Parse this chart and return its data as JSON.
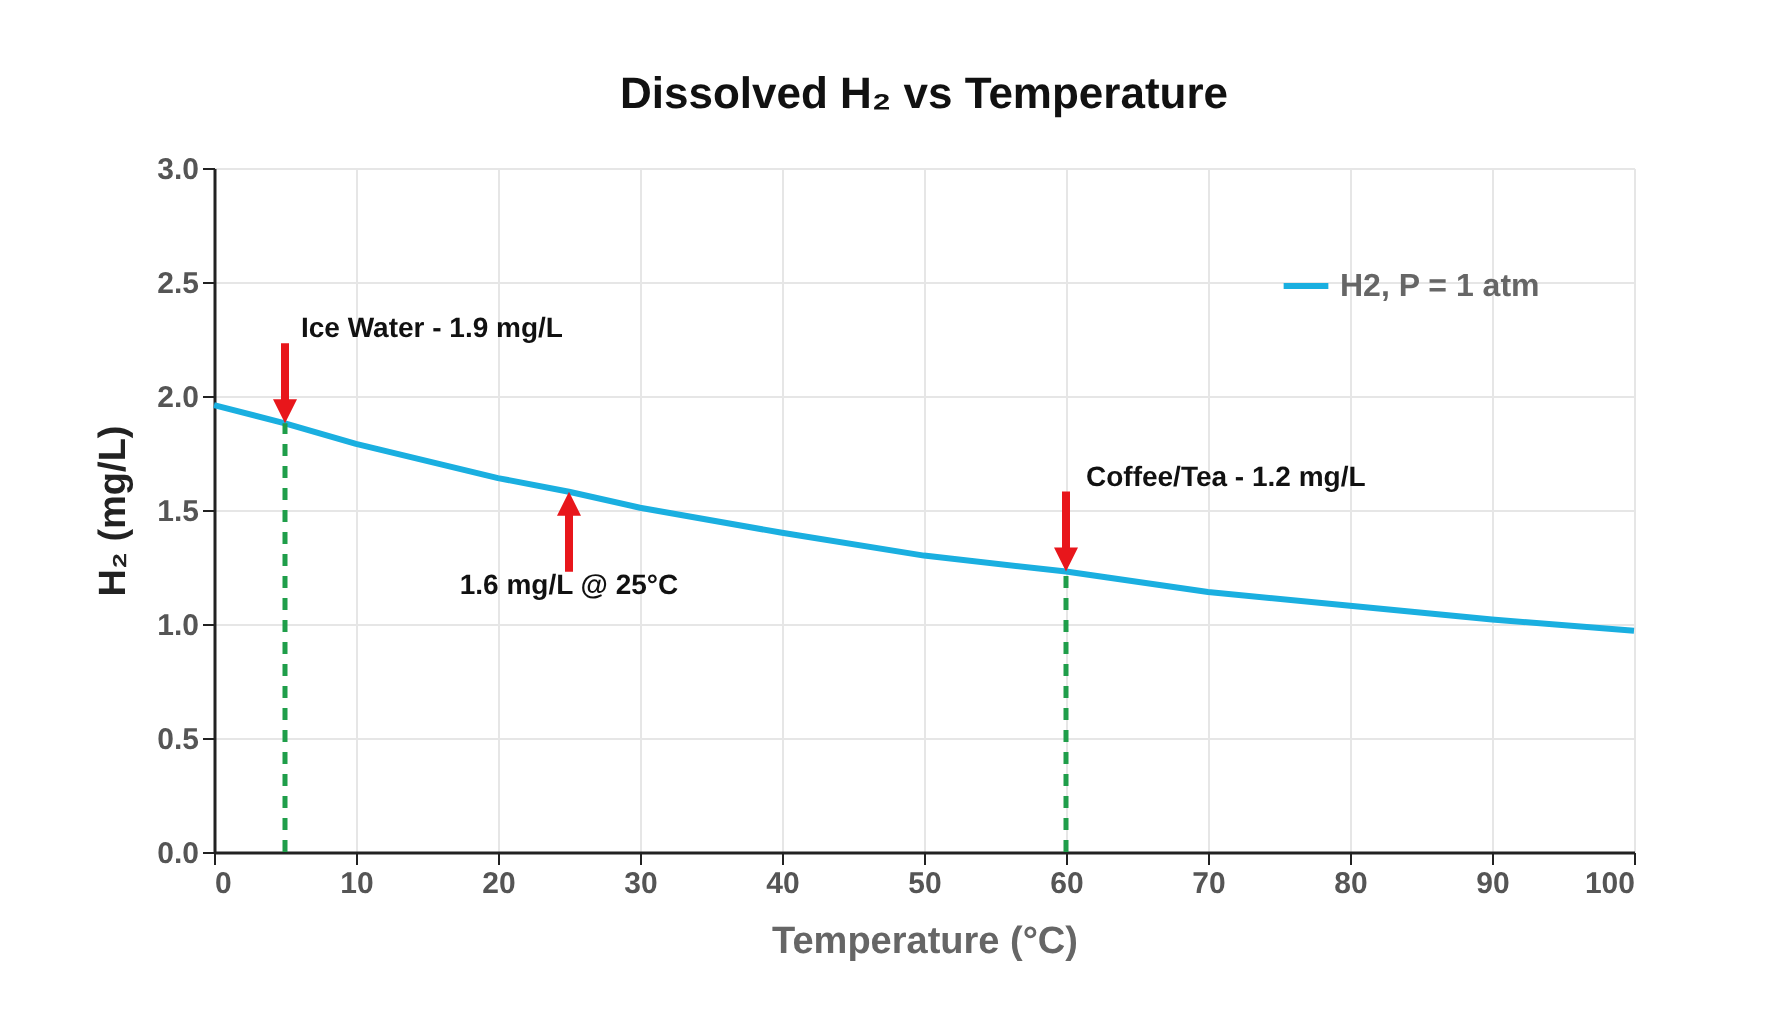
{
  "chart_data": {
    "type": "line",
    "title": "Dissolved H₂ vs Temperature",
    "xlabel": "Temperature (°C)",
    "ylabel": "H₂ (mg/L)",
    "x": [
      0,
      5,
      10,
      20,
      25,
      30,
      40,
      50,
      60,
      70,
      80,
      90,
      100
    ],
    "series": [
      {
        "name": "H2, P = 1 atm",
        "color": "#1aafe0",
        "values": [
          1.96,
          1.88,
          1.79,
          1.64,
          1.58,
          1.51,
          1.4,
          1.3,
          1.23,
          1.14,
          1.08,
          1.02,
          0.97
        ]
      }
    ],
    "xlim": [
      0,
      100
    ],
    "xticks": [
      0,
      10,
      20,
      30,
      40,
      50,
      60,
      70,
      80,
      90,
      100
    ],
    "ylim": [
      0,
      3
    ],
    "yticks": [
      {
        "value": 0,
        "label": "0.0"
      },
      {
        "value": 0.5,
        "label": "0.5"
      },
      {
        "value": 1,
        "label": "1.0"
      },
      {
        "value": 1.5,
        "label": "1.5"
      },
      {
        "value": 2,
        "label": "2.0"
      },
      {
        "value": 2.5,
        "label": "2.5"
      },
      {
        "value": 3,
        "label": "3.0"
      }
    ],
    "grid": true,
    "legend": "top right",
    "marker": "none",
    "line_style": "solid",
    "ref_lines": [
      {
        "axis": "x",
        "value": 5,
        "color": "#1f9e4a",
        "line_style": "dashed"
      },
      {
        "axis": "x",
        "value": 60,
        "color": "#1f9e4a",
        "line_style": "dashed"
      }
    ],
    "annotations": [
      {
        "text": "Ice Water - 1.9 mg/L",
        "x": 5,
        "y": 1.88
      },
      {
        "text": "1.6 mg/L @ 25°C",
        "x": 25,
        "y": 1.58
      },
      {
        "text": "Coffee/Tea - 1.2 mg/L",
        "x": 60,
        "y": 1.23
      }
    ]
  }
}
